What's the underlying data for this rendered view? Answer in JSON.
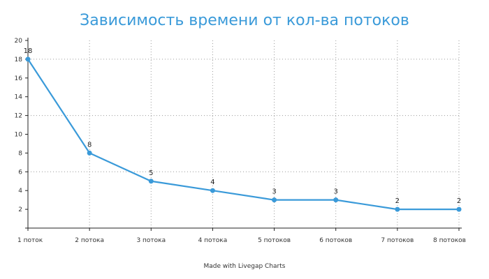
{
  "chart_data": {
    "type": "line",
    "title": "Зависимость времени от кол-ва потоков",
    "categories": [
      "1 поток",
      "2 потока",
      "3 потока",
      "4 потока",
      "5 потоков",
      "6 потоков",
      "7 потоков",
      "8 потоков"
    ],
    "values": [
      18,
      8,
      5,
      4,
      3,
      3,
      2,
      2
    ],
    "data_labels": [
      "18",
      "8",
      "5",
      "4",
      "3",
      "3",
      "2",
      "2"
    ],
    "y_ticks": [
      "2",
      "4",
      "6",
      "8",
      "10",
      "12",
      "14",
      "16",
      "18",
      "20"
    ],
    "ylim": [
      0,
      20
    ],
    "grid": true,
    "line_color": "#3a9ad9",
    "point_color": "#3a9ad9"
  },
  "footer": "Made with Livegap Charts"
}
